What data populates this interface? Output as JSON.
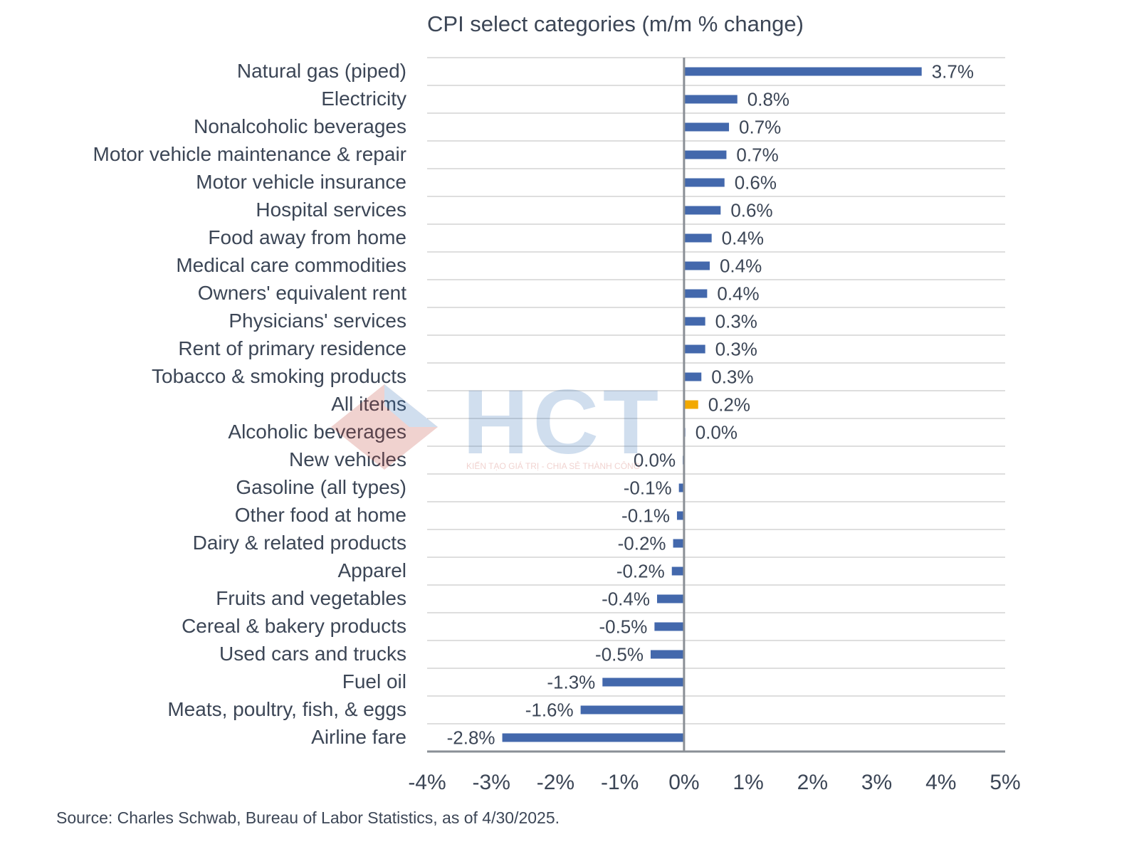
{
  "chart_data": {
    "type": "bar",
    "orientation": "horizontal",
    "title": "CPI select categories (m/m % change)",
    "source": "Source: Charles Schwab, Bureau of Labor Statistics, as of  4/30/2025.",
    "xlim": [
      -4,
      5
    ],
    "x_ticks": [
      "-4%",
      "-3%",
      "-2%",
      "-1%",
      "0%",
      "1%",
      "2%",
      "3%",
      "4%",
      "5%"
    ],
    "x_tick_values": [
      -4,
      -3,
      -2,
      -1,
      0,
      1,
      2,
      3,
      4,
      5
    ],
    "grid": "horizontal",
    "bar_color": "#4368ac",
    "highlight_color": "#f2a900",
    "categories": [
      "Natural gas (piped)",
      "Electricity",
      "Nonalcoholic beverages",
      "Motor vehicle maintenance & repair",
      "Motor vehicle insurance",
      "Hospital services",
      "Food away from home",
      "Medical care commodities",
      "Owners' equivalent rent",
      "Physicians' services",
      "Rent of primary residence",
      "Tobacco & smoking products",
      "All items",
      "Alcoholic beverages",
      "New vehicles",
      "Gasoline (all types)",
      "Other food at home",
      "Dairy & related products",
      "Apparel",
      "Fruits and vegetables",
      "Cereal & bakery products",
      "Used cars and trucks",
      "Fuel oil",
      "Meats, poultry, fish, & eggs",
      "Airline fare"
    ],
    "values": [
      3.7,
      0.83,
      0.7,
      0.66,
      0.63,
      0.57,
      0.43,
      0.4,
      0.36,
      0.33,
      0.33,
      0.27,
      0.22,
      0.02,
      -0.02,
      -0.08,
      -0.11,
      -0.17,
      -0.19,
      -0.42,
      -0.46,
      -0.52,
      -1.27,
      -1.61,
      -2.83
    ],
    "value_labels": [
      "3.7%",
      "0.8%",
      "0.7%",
      "0.7%",
      "0.6%",
      "0.6%",
      "0.4%",
      "0.4%",
      "0.4%",
      "0.3%",
      "0.3%",
      "0.3%",
      "0.2%",
      "0.0%",
      "0.0%",
      "-0.1%",
      "-0.1%",
      "-0.2%",
      "-0.2%",
      "-0.4%",
      "-0.5%",
      "-0.5%",
      "-1.3%",
      "-1.6%",
      "-2.8%"
    ],
    "highlight": [
      "All items"
    ]
  },
  "watermark": {
    "text": "HCT",
    "tagline": "KIẾN TẠO GIÁ TRỊ - CHIA SẺ THÀNH CÔNG"
  }
}
